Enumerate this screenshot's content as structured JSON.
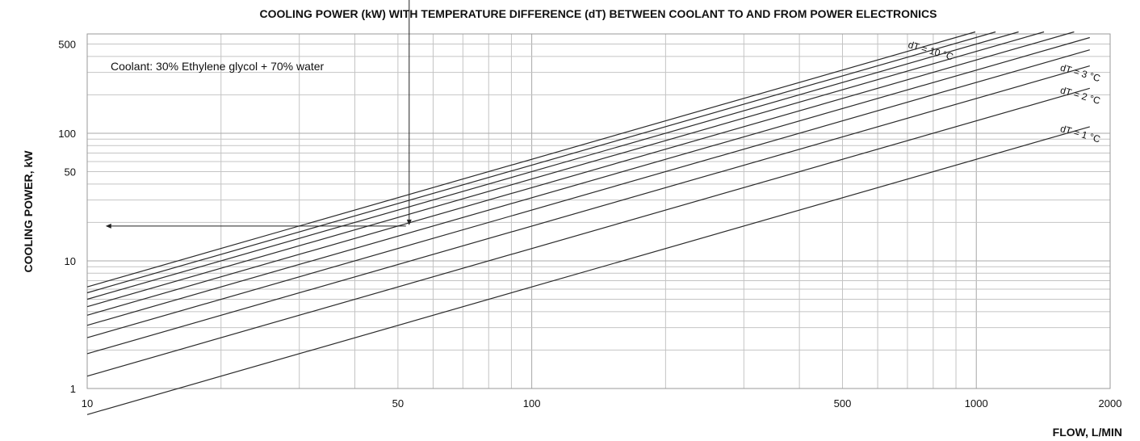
{
  "chart_data": {
    "type": "line",
    "title": "COOLING POWER (kW) WITH TEMPERATURE DIFFERENCE (dT) BETWEEN COOLANT TO AND FROM POWER ELECTRONICS",
    "xlabel": "FLOW, L/MIN",
    "ylabel": "COOLING POWER, kW",
    "xscale": "log",
    "yscale": "log",
    "xlim": [
      10,
      2000
    ],
    "ylim": [
      1,
      600
    ],
    "x_ticks": [
      10,
      50,
      100,
      500,
      1000,
      2000
    ],
    "x_tick_labels": [
      "10",
      "50",
      "100",
      "500",
      "1000",
      "2000"
    ],
    "y_ticks": [
      1,
      10,
      50,
      100,
      500
    ],
    "y_tick_labels": [
      "1",
      "10",
      "50",
      "100",
      "500"
    ],
    "grid": true,
    "annotation": "Coolant: 30% Ethylene glycol + 70% water",
    "series": [
      {
        "dT": 1,
        "name": "dT = 1 °C",
        "x": [
          10,
          1800
        ],
        "y": [
          0.625,
          112.5
        ]
      },
      {
        "dT": 2,
        "name": "dT = 2 °C",
        "x": [
          10,
          1800
        ],
        "y": [
          1.25,
          225
        ]
      },
      {
        "dT": 3,
        "name": "dT = 3 °C",
        "x": [
          10,
          1800
        ],
        "y": [
          1.875,
          337
        ]
      },
      {
        "dT": 4,
        "x": [
          10,
          1800
        ],
        "y": [
          2.5,
          450
        ]
      },
      {
        "dT": 5,
        "x": [
          10,
          1800
        ],
        "y": [
          3.125,
          562
        ]
      },
      {
        "dT": 6,
        "x": [
          10,
          1660
        ],
        "y": [
          3.75,
          622
        ]
      },
      {
        "dT": 7,
        "x": [
          10,
          1420
        ],
        "y": [
          4.375,
          622
        ]
      },
      {
        "dT": 8,
        "x": [
          10,
          1245
        ],
        "y": [
          5.0,
          622
        ]
      },
      {
        "dT": 9,
        "x": [
          10,
          1105
        ],
        "y": [
          5.625,
          622
        ]
      },
      {
        "dT": 10,
        "name": "dT = 10 °C",
        "x": [
          10,
          995
        ],
        "y": [
          6.25,
          622
        ]
      }
    ],
    "example_reading": {
      "flow": 53,
      "power": 19,
      "x_start_y": 600,
      "x_end": 11
    }
  }
}
